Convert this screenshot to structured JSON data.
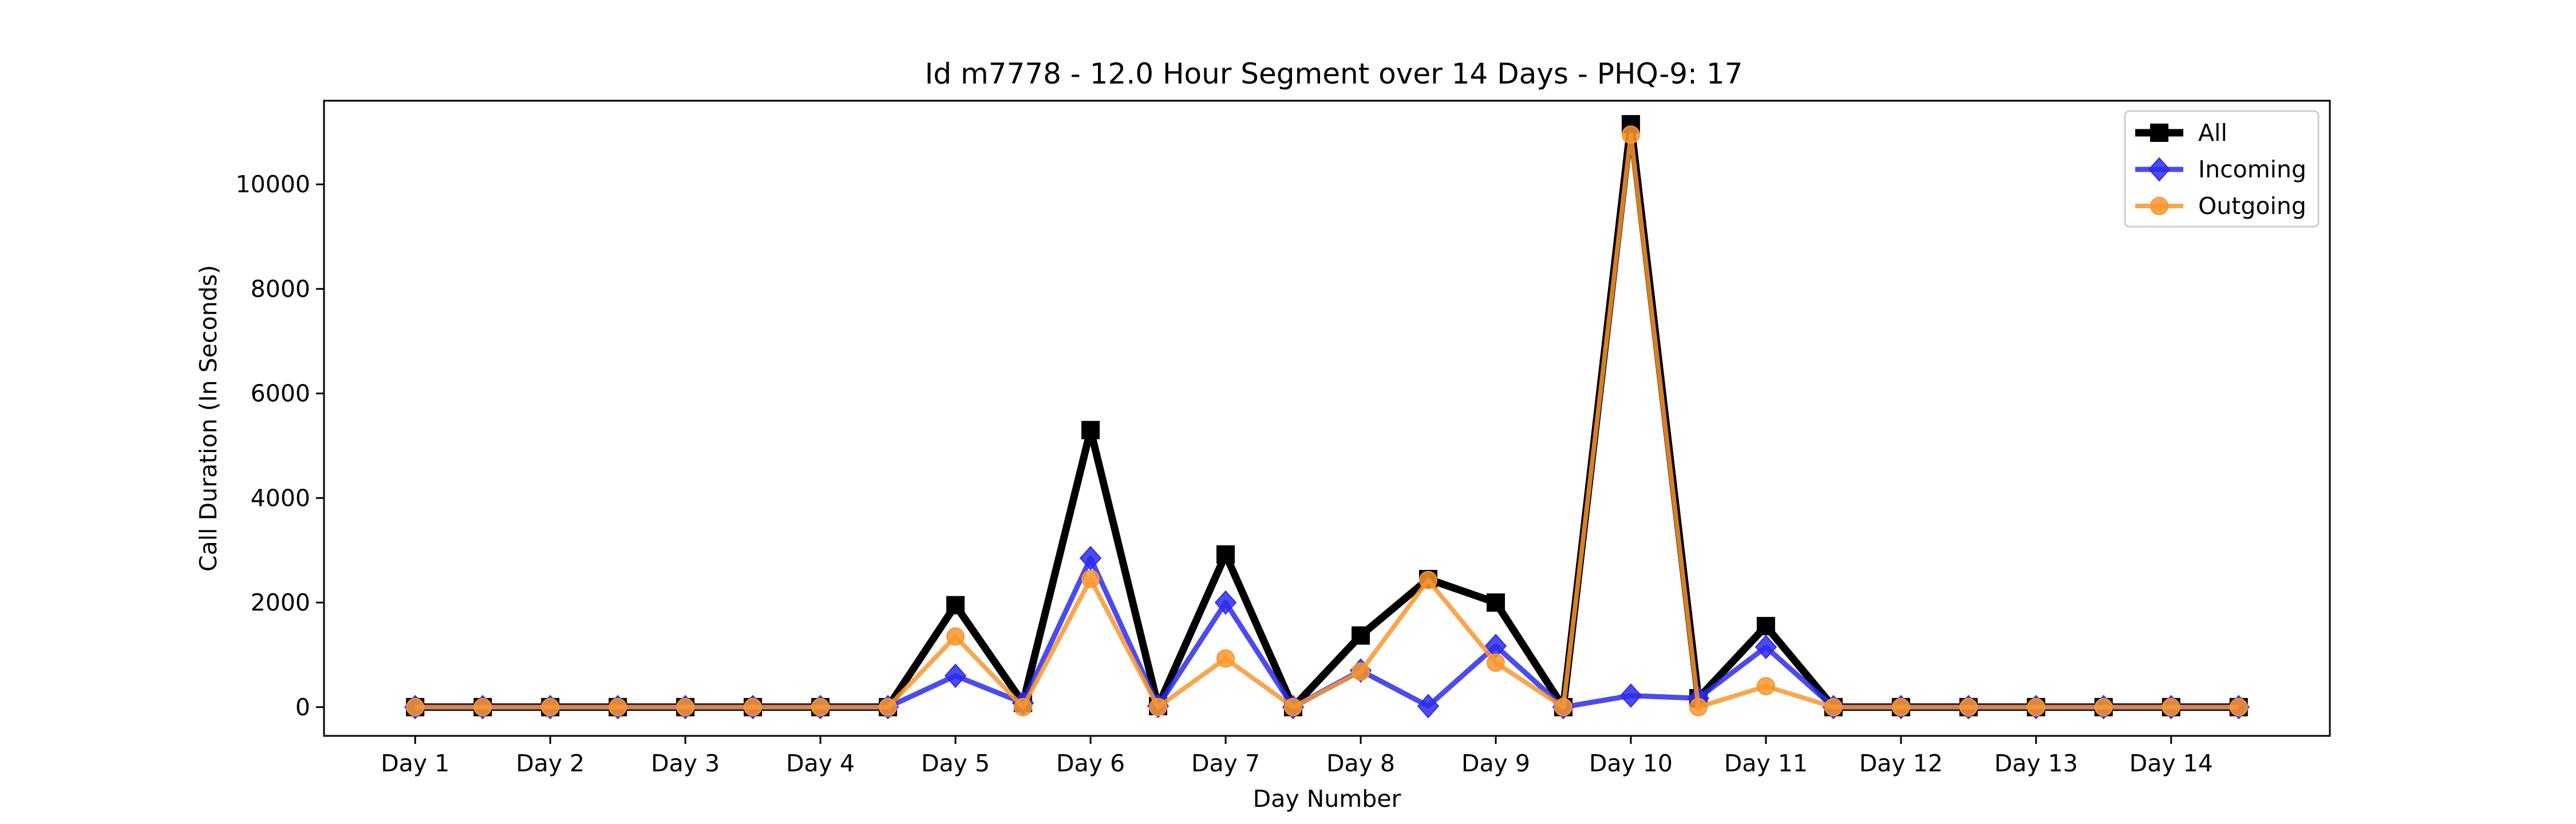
{
  "chart_data": {
    "type": "line",
    "title": "Id m7778 - 12.0 Hour Segment over 14 Days - PHQ-9: 17",
    "xlabel": "Day Number",
    "ylabel": "Call Duration (In Seconds)",
    "x_ticks": [
      {
        "x": 0,
        "label": "Day 1"
      },
      {
        "x": 2,
        "label": "Day 2"
      },
      {
        "x": 4,
        "label": "Day 3"
      },
      {
        "x": 6,
        "label": "Day 4"
      },
      {
        "x": 8,
        "label": "Day 5"
      },
      {
        "x": 10,
        "label": "Day 6"
      },
      {
        "x": 12,
        "label": "Day 7"
      },
      {
        "x": 14,
        "label": "Day 8"
      },
      {
        "x": 16,
        "label": "Day 9"
      },
      {
        "x": 18,
        "label": "Day 10"
      },
      {
        "x": 20,
        "label": "Day 11"
      },
      {
        "x": 22,
        "label": "Day 12"
      },
      {
        "x": 24,
        "label": "Day 13"
      },
      {
        "x": 26,
        "label": "Day 14"
      }
    ],
    "x": [
      0,
      1,
      2,
      3,
      4,
      5,
      6,
      7,
      8,
      9,
      10,
      11,
      12,
      13,
      14,
      15,
      16,
      17,
      18,
      19,
      20,
      21,
      22,
      23,
      24,
      25,
      26,
      27
    ],
    "xlim": [
      -1.35,
      28.35
    ],
    "ylim": [
      -550,
      11600
    ],
    "y_ticks": [
      0,
      2000,
      4000,
      6000,
      8000,
      10000
    ],
    "legend_position": "top-right",
    "series": [
      {
        "name": "All",
        "color": "#000000",
        "marker": "square",
        "values": [
          0,
          0,
          0,
          0,
          0,
          0,
          0,
          0,
          1950,
          80,
          5300,
          20,
          2920,
          0,
          1370,
          2450,
          2000,
          0,
          11150,
          170,
          1550,
          0,
          0,
          0,
          0,
          0,
          0,
          0
        ]
      },
      {
        "name": "Incoming",
        "color": "#2b2bed",
        "marker": "diamond",
        "values": [
          0,
          0,
          0,
          0,
          0,
          0,
          0,
          0,
          600,
          80,
          2850,
          20,
          2000,
          0,
          700,
          20,
          1170,
          0,
          220,
          170,
          1150,
          0,
          0,
          0,
          0,
          0,
          0,
          0
        ]
      },
      {
        "name": "Outgoing",
        "color": "#f9962f",
        "marker": "circle",
        "values": [
          0,
          0,
          0,
          0,
          0,
          0,
          0,
          0,
          1350,
          0,
          2450,
          0,
          930,
          0,
          680,
          2430,
          850,
          0,
          10950,
          0,
          400,
          0,
          0,
          0,
          0,
          0,
          0,
          0
        ]
      }
    ]
  }
}
